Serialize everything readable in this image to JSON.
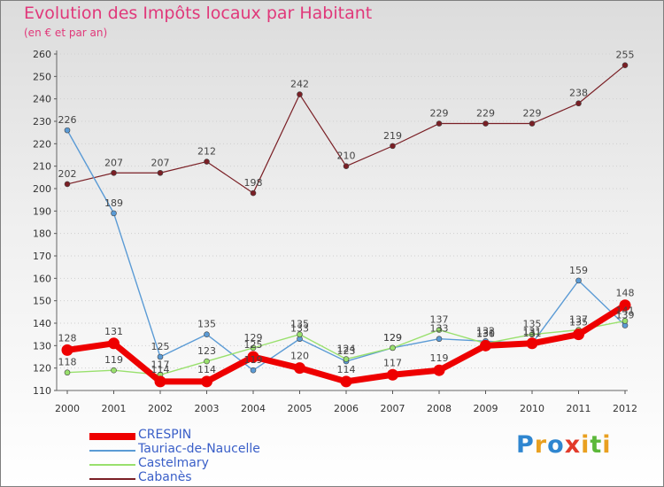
{
  "chart_data": {
    "type": "line",
    "title": "Evolution des Impôts locaux par Habitant",
    "subtitle": "(en € et par an)",
    "xlabel": "",
    "ylabel": "",
    "ylim": [
      110,
      260
    ],
    "ytick_step": 10,
    "grid": "horizontal dotted",
    "categories": [
      "2000",
      "2001",
      "2002",
      "2003",
      "2004",
      "2005",
      "2006",
      "2007",
      "2008",
      "2009",
      "2010",
      "2011",
      "2012"
    ],
    "series": [
      {
        "name": "CRESPIN",
        "color": "#ee0000",
        "values": [
          128,
          131,
          114,
          114,
          125,
          120,
          114,
          117,
          119,
          130,
          131,
          135,
          148
        ],
        "labels": [
          "128",
          "131",
          "114",
          "114",
          "125",
          "120",
          "114",
          "117",
          "119",
          "130",
          "131",
          "135",
          "148"
        ]
      },
      {
        "name": "Tauriac-de-Naucelle",
        "color": "#5b9bd5",
        "values": [
          226,
          189,
          125,
          135,
          119,
          133,
          123,
          129,
          133,
          132,
          131,
          159,
          139
        ],
        "labels": [
          "226",
          "189",
          "125",
          "135",
          "119",
          "133",
          "123",
          "129",
          "133",
          "132",
          "131",
          "159",
          "139"
        ]
      },
      {
        "name": "Castelmary",
        "color": "#99e06d",
        "values": [
          118,
          119,
          117,
          123,
          129,
          135,
          124,
          129,
          137,
          131,
          135,
          137,
          141
        ],
        "labels": [
          "118",
          "119",
          "117",
          "123",
          "129",
          "135",
          "124",
          "129",
          "137",
          "131",
          "135",
          "137",
          "141"
        ]
      },
      {
        "name": "Cabanès",
        "color": "#7a1f25",
        "values": [
          202,
          207,
          207,
          212,
          198,
          242,
          210,
          219,
          229,
          229,
          229,
          238,
          255
        ],
        "labels": [
          "202",
          "207",
          "207",
          "212",
          "198",
          "242",
          "210",
          "219",
          "229",
          "229",
          "229",
          "238",
          "255"
        ]
      }
    ],
    "legend_position": "bottom-left"
  },
  "brand": {
    "text": "Proxiti",
    "letter_colors": [
      "#2f86d0",
      "#e9a020",
      "#2f86d0",
      "#e23a2a",
      "#e9a020",
      "#5cb83a",
      "#e9a020"
    ]
  }
}
